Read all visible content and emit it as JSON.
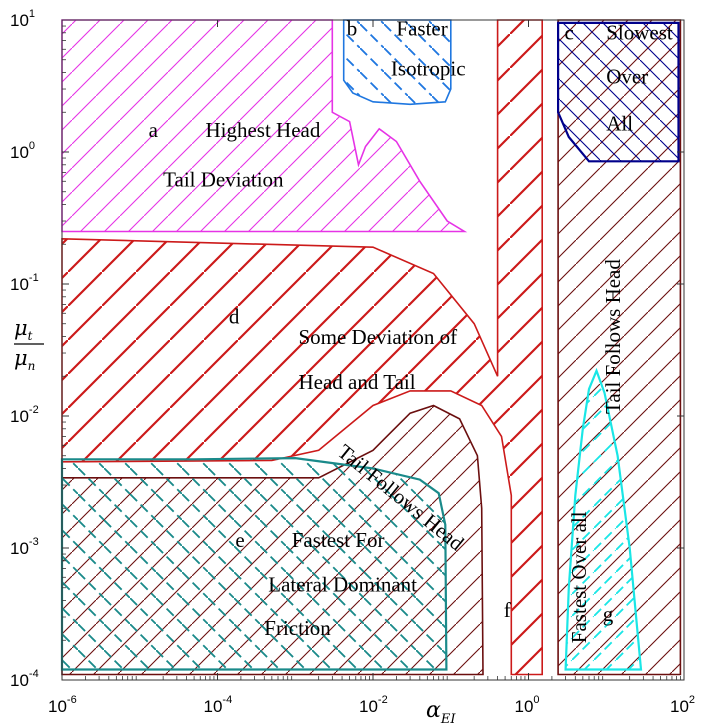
{
  "chart_data": {
    "type": "area",
    "x_scale": "log",
    "y_scale": "log",
    "xlim": [
      1e-06,
      100
    ],
    "ylim": [
      0.0001,
      10
    ],
    "xlabel": "α",
    "xlabel_sub": "EI",
    "ylabel_num": "μ",
    "ylabel_num_sub": "t",
    "ylabel_den": "μ",
    "ylabel_den_sub": "n",
    "x_ticks": [
      {
        "value": 1e-06,
        "base": "10",
        "exp": "-6"
      },
      {
        "value": 0.0001,
        "base": "10",
        "exp": "-4"
      },
      {
        "value": 0.01,
        "base": "10",
        "exp": "-2"
      },
      {
        "value": 1,
        "base": "10",
        "exp": "0"
      },
      {
        "value": 100,
        "base": "10",
        "exp": "2"
      }
    ],
    "y_ticks": [
      {
        "value": 0.0001,
        "base": "10",
        "exp": "-4"
      },
      {
        "value": 0.001,
        "base": "10",
        "exp": "-3"
      },
      {
        "value": 0.01,
        "base": "10",
        "exp": "-2"
      },
      {
        "value": 0.1,
        "base": "10",
        "exp": "-1"
      },
      {
        "value": 1,
        "base": "10",
        "exp": "0"
      },
      {
        "value": 10,
        "base": "10",
        "exp": "1"
      }
    ],
    "regions": [
      {
        "id": "a",
        "color": "#e633e6",
        "hatch": "thin-forward",
        "boundary": [
          [
            1e-06,
            10
          ],
          [
            0.003,
            10
          ],
          [
            0.003,
            2.0
          ],
          [
            0.005,
            1.7
          ],
          [
            0.0065,
            0.8
          ],
          [
            0.008,
            1.1
          ],
          [
            0.012,
            1.5
          ],
          [
            0.02,
            1.2
          ],
          [
            0.04,
            0.6
          ],
          [
            0.09,
            0.3
          ],
          [
            0.15,
            0.25
          ],
          [
            1e-06,
            0.25
          ]
        ]
      },
      {
        "id": "b",
        "color": "#1f77e0",
        "hatch": "dashed-back",
        "boundary": [
          [
            0.0042,
            10
          ],
          [
            0.1,
            10
          ],
          [
            0.1,
            3.0
          ],
          [
            0.085,
            2.4
          ],
          [
            0.03,
            2.3
          ],
          [
            0.01,
            2.4
          ],
          [
            0.0055,
            2.8
          ],
          [
            0.0042,
            3.5
          ]
        ]
      },
      {
        "id": "c",
        "color": "#00008b",
        "hatch": "dense-back",
        "boundary": [
          [
            2.4,
            9.5
          ],
          [
            85,
            9.5
          ],
          [
            85,
            0.85
          ],
          [
            6.0,
            0.85
          ],
          [
            3.3,
            1.3
          ],
          [
            2.4,
            2.0
          ]
        ]
      },
      {
        "id": "d",
        "color": "#cc1a1a",
        "hatch": "thick-forward",
        "boundary": [
          [
            1e-06,
            0.22
          ],
          [
            0.01,
            0.19
          ],
          [
            0.06,
            0.12
          ],
          [
            0.2,
            0.05
          ],
          [
            0.4,
            0.02
          ],
          [
            0.4,
            10
          ],
          [
            1.5,
            10
          ],
          [
            1.5,
            0.00011
          ],
          [
            0.6,
            0.00011
          ],
          [
            0.6,
            0.0025
          ],
          [
            0.45,
            0.007
          ],
          [
            0.25,
            0.012
          ],
          [
            0.1,
            0.0155
          ],
          [
            0.03,
            0.0155
          ],
          [
            0.01,
            0.012
          ],
          [
            0.002,
            0.0055
          ],
          [
            0.0005,
            0.0046
          ],
          [
            1e-06,
            0.0045
          ]
        ]
      },
      {
        "id": "e",
        "color": "#1a8a8a",
        "hatch": "dashed-cross",
        "boundary": [
          [
            1e-06,
            0.0047
          ],
          [
            5e-05,
            0.0047
          ],
          [
            0.001,
            0.0048
          ],
          [
            0.01,
            0.004
          ],
          [
            0.04,
            0.0033
          ],
          [
            0.07,
            0.0026
          ],
          [
            0.085,
            0.0015
          ],
          [
            0.088,
            0.00012
          ],
          [
            1e-06,
            0.00012
          ]
        ]
      },
      {
        "id": "f",
        "color": "#6b0f0f",
        "hatch": "thin-forward",
        "boundary": [
          [
            1e-06,
            0.0034
          ],
          [
            0.002,
            0.0034
          ],
          [
            0.01,
            0.0055
          ],
          [
            0.03,
            0.0105
          ],
          [
            0.06,
            0.012
          ],
          [
            0.13,
            0.0095
          ],
          [
            0.22,
            0.005
          ],
          [
            0.25,
            0.002
          ],
          [
            0.26,
            0.00011
          ],
          [
            1e-06,
            0.00011
          ]
        ]
      },
      {
        "id": "tail-follows-head-strip",
        "color": "#6b0f0f",
        "hatch": "thin-forward",
        "boundary": [
          [
            2.4,
            10
          ],
          [
            90,
            10
          ],
          [
            90,
            0.00011
          ],
          [
            2.4,
            0.00011
          ]
        ]
      },
      {
        "id": "g",
        "color": "#1ae6e6",
        "hatch": "dashed-forward",
        "boundary": [
          [
            7.5,
            0.022
          ],
          [
            9.5,
            0.015
          ],
          [
            14,
            0.005
          ],
          [
            20,
            0.001
          ],
          [
            28,
            0.00012
          ],
          [
            3.0,
            0.00012
          ],
          [
            3.3,
            0.0005
          ],
          [
            4.0,
            0.0025
          ],
          [
            5.0,
            0.008
          ],
          [
            6.0,
            0.016
          ]
        ]
      }
    ],
    "labels": [
      {
        "id": "label-a-letter",
        "text": "a",
        "x": 1.3e-05,
        "y": 1.3
      },
      {
        "id": "label-a-1",
        "text": "Highest Head",
        "x": 7e-05,
        "y": 1.3
      },
      {
        "id": "label-a-2",
        "text": "Tail Deviation",
        "x": 2e-05,
        "y": 0.55
      },
      {
        "id": "label-b-letter",
        "text": "b",
        "x": 0.0046,
        "y": 7.6
      },
      {
        "id": "label-b-1",
        "text": "Faster",
        "x": 0.02,
        "y": 7.6
      },
      {
        "id": "label-b-2",
        "text": "Isotropic",
        "x": 0.017,
        "y": 3.8
      },
      {
        "id": "label-c-letter",
        "text": "c",
        "x": 2.9,
        "y": 7.1
      },
      {
        "id": "label-c-1",
        "text": "Slowest",
        "x": 10,
        "y": 7.1
      },
      {
        "id": "label-c-2",
        "text": "Over",
        "x": 10,
        "y": 3.3
      },
      {
        "id": "label-c-3",
        "text": "All",
        "x": 10,
        "y": 1.45
      },
      {
        "id": "label-d-letter",
        "text": "d",
        "x": 0.00014,
        "y": 0.05
      },
      {
        "id": "label-d-1",
        "text": "Some Deviation of",
        "x": 0.0011,
        "y": 0.035
      },
      {
        "id": "label-d-2",
        "text": "Head and Tail",
        "x": 0.0011,
        "y": 0.016
      },
      {
        "id": "label-e-letter",
        "text": "e",
        "x": 0.00017,
        "y": 0.00102
      },
      {
        "id": "label-e-1",
        "text": "Fastest For",
        "x": 0.0009,
        "y": 0.00102
      },
      {
        "id": "label-e-2",
        "text": "Lateral Dominant",
        "x": 0.00045,
        "y": 0.00047
      },
      {
        "id": "label-e-3",
        "text": "Friction",
        "x": 0.0004,
        "y": 0.00022
      },
      {
        "id": "label-f-letter",
        "text": "f",
        "x": 0.48,
        "y": 0.0003
      },
      {
        "id": "label-g-letter",
        "text": "g",
        "x": 9.0,
        "y": 0.00028
      },
      {
        "id": "label-tail-follows-head-vert",
        "text": "Tail Follows Head",
        "x": 15,
        "y": 0.04,
        "rotate": -90
      },
      {
        "id": "label-fastest-over-all",
        "text": "Fastest Over all",
        "x": 5.5,
        "y": 0.0006,
        "rotate": -90
      },
      {
        "id": "label-tail-follows-head-diag",
        "text": "Tail Follows Head",
        "x": 0.02,
        "y": 0.0022,
        "rotate": 39
      }
    ]
  }
}
